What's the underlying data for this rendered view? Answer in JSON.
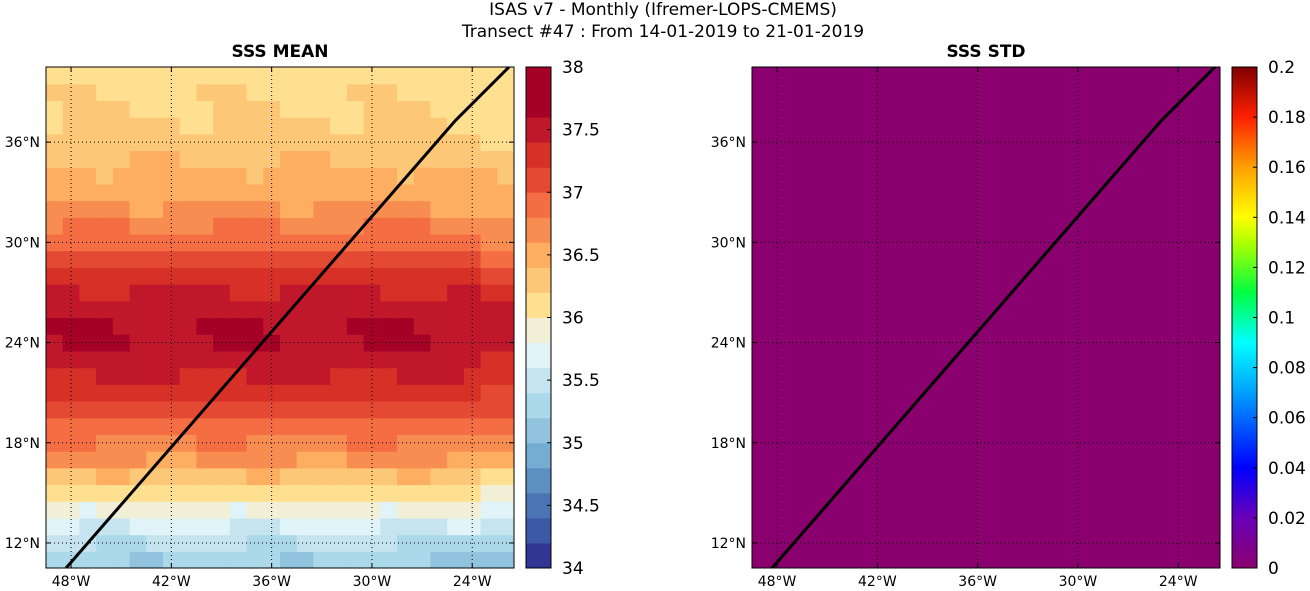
{
  "figure": {
    "title_line1": "ISAS v7 - Monthly (Ifremer-LOPS-CMEMS)",
    "title_line2": "Transect #47 : From 14-01-2019 to 21-01-2019"
  },
  "chart_data": [
    {
      "type": "heatmap",
      "title": "SSS MEAN",
      "x_ticks": [
        "48°W",
        "42°W",
        "36°W",
        "30°W",
        "24°W"
      ],
      "y_ticks": [
        "12°N",
        "18°N",
        "24°N",
        "30°N",
        "36°N"
      ],
      "xlim": [
        -49.5,
        -21.5
      ],
      "ylim": [
        10.5,
        40.5
      ],
      "transect": [
        [
          -48.3,
          10.5
        ],
        [
          -25.0,
          37.3
        ],
        [
          -21.8,
          40.5
        ]
      ],
      "colorbar": {
        "min": 34,
        "max": 38,
        "tick_labels": [
          "34",
          "34.5",
          "35",
          "35.5",
          "36",
          "36.5",
          "37",
          "37.5",
          "38"
        ],
        "colors": [
          "#313695",
          "#3c59a6",
          "#4a74b4",
          "#5e8fc3",
          "#74add1",
          "#91c3de",
          "#abd9e9",
          "#c5e4ef",
          "#e0f3f8",
          "#f1f0d6",
          "#fee090",
          "#fdc778",
          "#fdae61",
          "#f88d52",
          "#f46d43",
          "#e34933",
          "#d73027",
          "#c0182a",
          "#a50026",
          "#a50026"
        ]
      }
    },
    {
      "type": "heatmap",
      "title": "SSS STD",
      "x_ticks": [
        "48°W",
        "42°W",
        "36°W",
        "30°W",
        "24°W"
      ],
      "y_ticks": [
        "12°N",
        "18°N",
        "24°N",
        "30°N",
        "36°N"
      ],
      "xlim": [
        -49.5,
        -21.5
      ],
      "ylim": [
        10.5,
        40.5
      ],
      "transect": [
        [
          -48.3,
          10.5
        ],
        [
          -25.0,
          37.3
        ],
        [
          -21.8,
          40.5
        ]
      ],
      "field_value": 0,
      "field_color": "#8a006e",
      "colorbar": {
        "min": 0,
        "max": 0.2,
        "tick_labels": [
          "0",
          "0.02",
          "0.04",
          "0.06",
          "0.08",
          "0.1",
          "0.12",
          "0.14",
          "0.16",
          "0.18",
          "0.2"
        ]
      }
    }
  ]
}
